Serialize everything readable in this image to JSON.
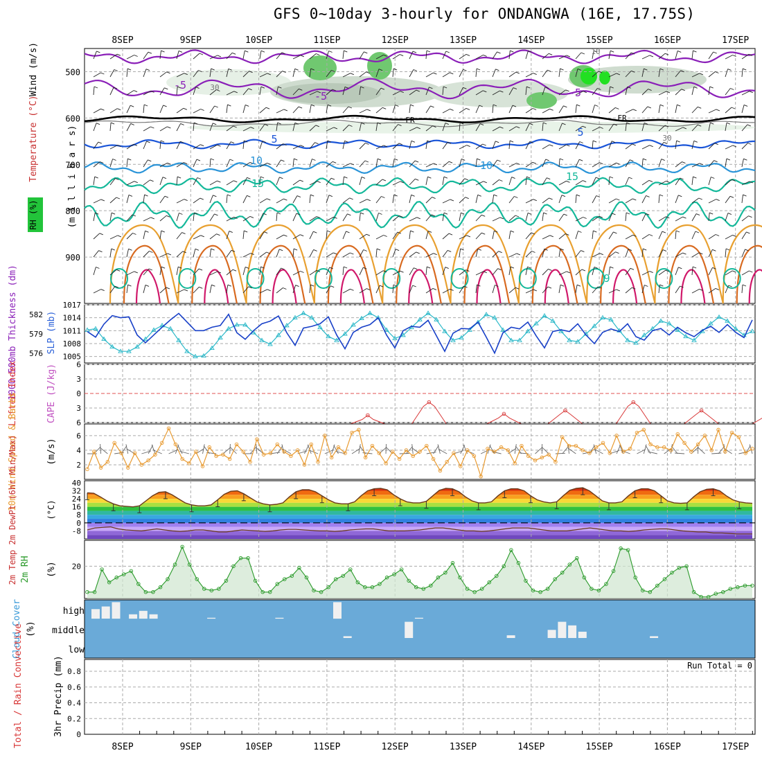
{
  "title": "GFS 0~10day 3-hourly for ONDANGWA (16E, 17.75S)",
  "dates": [
    "8SEP",
    "9SEP",
    "10SEP",
    "11SEP",
    "12SEP",
    "13SEP",
    "14SEP",
    "15SEP",
    "16SEP",
    "17SEP"
  ],
  "colors": {
    "temp_cold": "#8a1fb8",
    "temp_5": "#1a55d8",
    "temp_10": "#2a94d8",
    "temp_15": "#14b89a",
    "temp_warm": "#e8a030",
    "temp_hot": "#d86a20",
    "temp_hotter": "#d0186a",
    "freezing": "#000000",
    "rh_green": "#22c43a",
    "slp": "#1840c8",
    "thickness": "#2ab8c8",
    "cape": "#d83838",
    "wind10m": "#e89a30",
    "rh2m": "#2a9a2a",
    "cloud_bg": "#6aaad8",
    "cloud_bar": "#f0f0f0"
  },
  "chart_data": [
    {
      "name": "upper_air",
      "type": "heatmap",
      "ylabel_parts": [
        "(m i l l i b a r s)",
        "Wind (m/s)",
        "Temperature (°C)",
        "RH (%)"
      ],
      "y_ticks": [
        500,
        600,
        700,
        800,
        900
      ],
      "ylim": [
        1000,
        450
      ],
      "contour_labels": [
        "-5",
        "-5",
        "-5",
        "FR",
        "FR",
        "5",
        "5",
        "10",
        "10",
        "15",
        "15",
        "30",
        "30",
        "10",
        "9"
      ]
    },
    {
      "name": "slp_thickness",
      "type": "line",
      "ylabel_left": "1000-500mb Thickness (dm)",
      "ylabel_right": "SLP (mb)",
      "left_ticks": [
        "582",
        "579",
        "576"
      ],
      "right_ticks": [
        "1017",
        "1014",
        "1011",
        "1008",
        "1005"
      ],
      "slp": [
        1010.8,
        1009.5,
        1012.5,
        1014.5,
        1014,
        1014.2,
        1010,
        1008.2,
        1010,
        1011.8,
        1013.5,
        1015,
        1013,
        1011,
        1011,
        1011.8,
        1012.2,
        1014.8,
        1010.5,
        1009,
        1011,
        1012.6,
        1013.2,
        1014.4,
        1010.5,
        1007.6,
        1011.6,
        1012,
        1012.6,
        1014.2,
        1010,
        1006.8,
        1010.6,
        1011.8,
        1012.4,
        1014,
        1010,
        1007,
        1011,
        1012,
        1011.8,
        1013.4,
        1009.8,
        1006.2,
        1010.4,
        1011.5,
        1011.4,
        1013,
        1009.5,
        1005.8,
        1010.5,
        1011.8,
        1011.4,
        1013,
        1009.8,
        1007,
        1010.8,
        1011.2,
        1010.8,
        1012.6,
        1010,
        1008,
        1010.6,
        1011.4,
        1010.8,
        1012.6,
        1009.6,
        1008.8,
        1011,
        1011.5,
        1010,
        1011.8,
        1010.5,
        1009.6,
        1011.1,
        1012,
        1010.6,
        1012.4,
        1010.6,
        1009.4,
        1013.5
      ],
      "thickness": [
        579.6,
        579.8,
        578.2,
        577,
        576.3,
        576.3,
        577,
        578.2,
        579.6,
        580.3,
        579.8,
        578,
        576.3,
        575.5,
        575.6,
        576.8,
        578.4,
        579.8,
        580.4,
        580.4,
        579.2,
        578,
        577.4,
        578.8,
        580.3,
        581.5,
        582.2,
        581.5,
        580,
        578.6,
        578,
        579,
        580.4,
        581.4,
        582.2,
        581.5,
        579.6,
        578.3,
        578.8,
        580,
        581.2,
        582.2,
        581.2,
        579.4,
        578,
        578.4,
        579.6,
        580.8,
        582,
        581.5,
        579.6,
        578,
        578,
        579.4,
        580.6,
        581.8,
        581,
        579.4,
        578,
        577.8,
        579,
        580.2,
        581.5,
        581.2,
        579.5,
        578,
        577.6,
        578.8,
        579.8,
        581,
        580.6,
        579.6,
        578.6,
        578,
        579.4,
        580.6,
        581.6,
        581,
        579.8,
        578.8,
        579.4
      ]
    },
    {
      "name": "cape_li",
      "type": "line",
      "ylabel_left": "Lifted Index",
      "ylabel_right": "CAPE (J/kg)",
      "left_ticks": [
        "-6",
        "-3",
        "0",
        "3",
        "6"
      ],
      "ylim": [
        -6,
        6
      ],
      "lifted_index_peaks": [
        {
          "day": 3.6,
          "value": 4.5
        },
        {
          "day": 4.5,
          "value": 1.8
        },
        {
          "day": 5.6,
          "value": 4.2
        },
        {
          "day": 6.5,
          "value": 3.5
        },
        {
          "day": 7.5,
          "value": 1.8
        },
        {
          "day": 8.5,
          "value": 3.5
        },
        {
          "day": 9.5,
          "value": 4.0
        }
      ]
    },
    {
      "name": "wind10m",
      "type": "line",
      "ylabel_left": "10m Wind Speed & Barbs",
      "ylabel_right": "(m/s)",
      "y_ticks": [
        "2",
        "4",
        "6"
      ],
      "ylim": [
        0,
        7.6
      ],
      "values": [
        1.4,
        3.8,
        1.6,
        2.4,
        5,
        3.6,
        1.6,
        3.6,
        2,
        2.6,
        3.4,
        5,
        7,
        4.8,
        2.8,
        2.2,
        3.8,
        1.8,
        4.4,
        3.2,
        3.4,
        2.8,
        4.8,
        3.8,
        2.4,
        5.5,
        3.4,
        3.6,
        4.8,
        3.8,
        3.2,
        4,
        2,
        4.8,
        2.4,
        6,
        3,
        4.4,
        3.6,
        6.4,
        6.8,
        3,
        4.6,
        3.6,
        2.2,
        3.8,
        2.8,
        4,
        3.2,
        3.8,
        4.6,
        2.8,
        1.2,
        2.4,
        3.6,
        1.8,
        4,
        3.2,
        0.4,
        4.2,
        3.8,
        4.4,
        4,
        2.2,
        4.6,
        3.2,
        2.6,
        3,
        3.4,
        2.4,
        5.8,
        4.6,
        4.6,
        4,
        3.6,
        4.4,
        5,
        3.6,
        6,
        3.8,
        4.2,
        6.4,
        6.8,
        4.8,
        4.4,
        4.4,
        4,
        6.2,
        5,
        3.8,
        4.8,
        6,
        4,
        6.8,
        3.8,
        6.4,
        5.8,
        3.6,
        4.2
      ]
    },
    {
      "name": "temp2m",
      "type": "area",
      "ylabel_left": "2m Temp 2m DewPt (6hr Min/Max)",
      "ylabel_right": "(°C)",
      "y_ticks": [
        "40",
        "32",
        "24",
        "16",
        "8",
        "0",
        "-8"
      ],
      "ylim": [
        -16,
        42
      ],
      "temp": [
        30,
        29.5,
        26,
        22,
        19,
        17,
        16.5,
        16,
        17,
        22,
        27,
        30.5,
        31,
        28,
        24,
        20,
        18,
        17,
        17,
        18,
        23,
        28.5,
        31.5,
        32,
        29,
        25,
        21,
        19,
        18,
        18.5,
        20,
        26,
        31,
        33,
        33,
        31,
        27,
        23,
        20,
        19,
        19,
        21,
        27,
        32,
        34,
        34.5,
        33,
        28,
        24,
        21,
        20,
        20,
        21.5,
        27,
        32.5,
        34.5,
        34,
        31,
        26,
        22,
        20,
        20,
        21,
        27,
        32,
        34,
        34,
        32,
        27,
        23,
        21,
        20,
        21,
        27,
        32.5,
        34.5,
        35,
        32,
        27,
        22,
        20,
        20,
        21,
        27,
        32,
        34,
        34,
        32,
        27,
        22,
        20,
        19.5,
        20,
        26,
        31,
        33.5,
        34,
        32,
        27,
        23,
        21,
        20,
        19.5
      ],
      "dewpt": [
        -7,
        -5,
        -4.5,
        -4,
        -6,
        -7,
        -7.5,
        -8,
        -7,
        -6,
        -7,
        -8,
        -8.5,
        -8,
        -7,
        -7,
        -8,
        -9,
        -9,
        -8,
        -7,
        -7.5,
        -8,
        -8.5,
        -8,
        -7,
        -6.5,
        -6.5,
        -7,
        -7.5,
        -8,
        -8,
        -8.5,
        -8,
        -7,
        -6.5,
        -6,
        -6,
        -7,
        -8,
        -8,
        -8,
        -7.5,
        -7,
        -6,
        -5,
        -5,
        -6,
        -7,
        -8,
        -8,
        -8.5,
        -8,
        -7,
        -6,
        -5,
        -5,
        -5,
        -6,
        -7,
        -8,
        -8,
        -8,
        -7,
        -6,
        -5,
        -6,
        -7,
        -8,
        -8,
        -8.5,
        -8,
        -7,
        -6.5,
        -6,
        -6,
        -7,
        -8,
        -8.5,
        -9,
        -9,
        -10,
        -10,
        -10.5,
        -11,
        -11,
        -11
      ]
    },
    {
      "name": "rh2m",
      "type": "area",
      "ylabel_left": "2m RH",
      "ylabel_right": "(%)",
      "y_ticks": [
        "20"
      ],
      "ylim": [
        0,
        36
      ],
      "values": [
        4,
        4,
        18,
        10,
        13,
        15,
        17,
        9,
        4,
        4,
        7,
        12,
        21,
        32,
        21,
        12,
        6,
        5,
        6,
        11,
        20,
        25,
        25,
        11,
        4,
        4,
        9,
        12,
        14,
        19,
        13,
        5,
        4,
        7,
        12,
        14,
        18,
        10,
        7,
        7,
        9,
        13,
        15,
        18,
        11,
        7,
        6,
        8,
        13,
        16,
        22,
        13,
        6,
        4,
        6,
        10,
        14,
        20,
        30,
        22,
        11,
        5,
        4,
        6,
        12,
        16,
        21,
        25,
        13,
        6,
        5,
        9,
        17,
        31,
        30,
        13,
        5,
        4,
        8,
        12,
        16,
        19,
        20,
        4,
        1,
        1,
        3,
        4,
        6,
        7,
        8,
        8
      ]
    },
    {
      "name": "cloud_cover",
      "type": "bar",
      "ylabel_left": "Cloud Cover",
      "ylabel_right": "(%)",
      "levels": [
        "high",
        "middle",
        "low"
      ],
      "high_cloud": [
        {
          "day": 0.0,
          "value": 55
        },
        {
          "day": 0.15,
          "value": 70
        },
        {
          "day": 0.3,
          "value": 95
        },
        {
          "day": 0.55,
          "value": 25
        },
        {
          "day": 0.7,
          "value": 45
        },
        {
          "day": 0.85,
          "value": 25
        },
        {
          "day": 1.7,
          "value": 5
        },
        {
          "day": 2.7,
          "value": 5
        },
        {
          "day": 3.55,
          "value": 95
        },
        {
          "day": 4.75,
          "value": 5
        }
      ],
      "middle_cloud": [
        {
          "day": 3.7,
          "value": 10
        },
        {
          "day": 4.6,
          "value": 90
        },
        {
          "day": 6.1,
          "value": 15
        },
        {
          "day": 6.7,
          "value": 45
        },
        {
          "day": 6.85,
          "value": 90
        },
        {
          "day": 7.0,
          "value": 70
        },
        {
          "day": 7.15,
          "value": 35
        },
        {
          "day": 8.2,
          "value": 10
        }
      ]
    },
    {
      "name": "precip",
      "type": "bar",
      "ylabel_left": "Total / Rain Convective",
      "ylabel_right": "3hr Precip (mm)",
      "y_ticks": [
        "0",
        "0.2",
        "0.4",
        "0.6",
        "0.8"
      ],
      "ylim": [
        0,
        0.95
      ],
      "run_total": "Run Total = 0",
      "values": []
    }
  ]
}
